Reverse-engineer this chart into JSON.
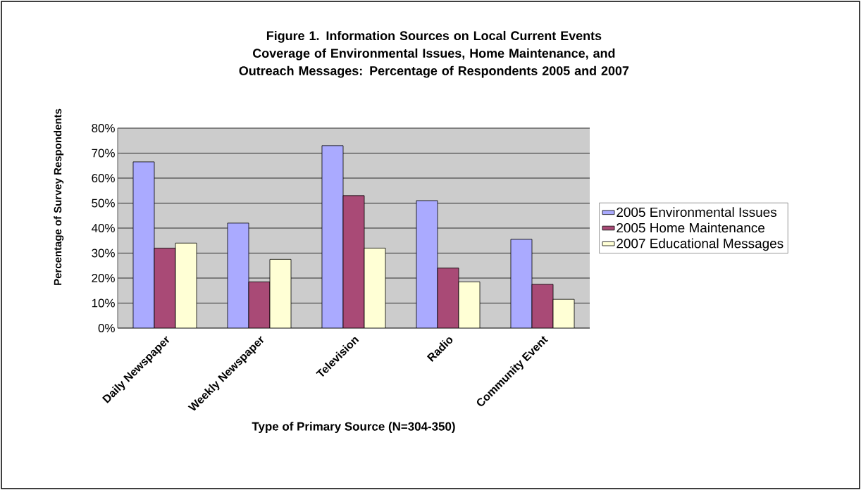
{
  "chart_data": {
    "type": "bar",
    "title": "Figure 1.   Information Sources on Local Current Events Coverage of Environmental Issues, Home Maintenance, and Outreach Messages: Percentage of Respondents 2005 and 2007",
    "xlabel": "Type of Primary Source (N=304-350)",
    "ylabel": "Percentage of Survey Respondents",
    "categories": [
      "Daily Newspaper",
      "Weekly Newspaper",
      "Television",
      "Radio",
      "Community Event"
    ],
    "series": [
      {
        "name": "2005 Environmental Issues",
        "color": "#aaaaff",
        "values": [
          66.5,
          42,
          73,
          51,
          35.5
        ]
      },
      {
        "name": "2005 Home Maintenance",
        "color": "#a94a76",
        "values": [
          32,
          18.5,
          53,
          24,
          17.5
        ]
      },
      {
        "name": "2007 Educational Messages",
        "color": "#ffffd5",
        "values": [
          34,
          27.5,
          32,
          18.5,
          11.5
        ]
      }
    ],
    "ylim": [
      0,
      80
    ],
    "yticks": [
      {
        "value": 0,
        "label": "0%"
      },
      {
        "value": 10,
        "label": "10%"
      },
      {
        "value": 20,
        "label": "20%"
      },
      {
        "value": 30,
        "label": "30%"
      },
      {
        "value": 40,
        "label": "40%"
      },
      {
        "value": 50,
        "label": "50%"
      },
      {
        "value": 60,
        "label": "60%"
      },
      {
        "value": 70,
        "label": "70%"
      },
      {
        "value": 80,
        "label": "80%"
      }
    ],
    "grid": "y",
    "legend": "right"
  }
}
